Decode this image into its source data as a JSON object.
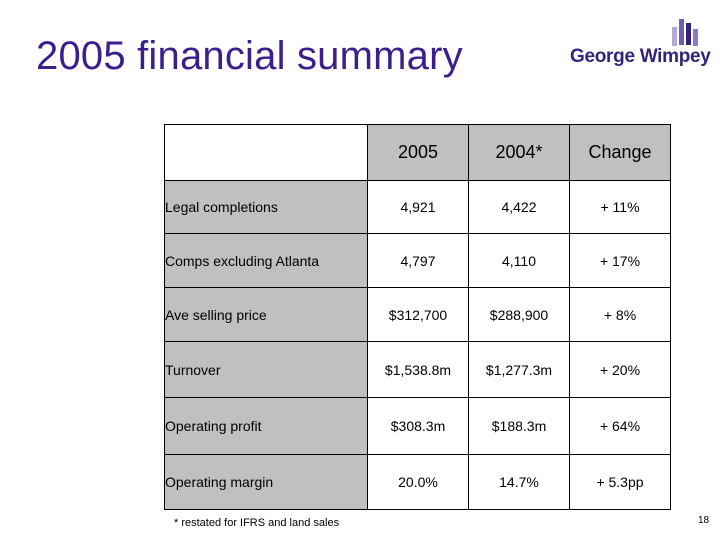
{
  "slide": {
    "title": "2005 financial summary",
    "footnote": "* restated for IFRS and land sales",
    "page_number": "18"
  },
  "logo": {
    "text": "George Wimpey",
    "colors": {
      "dark": "#35237a",
      "medium": "#6f5fb0",
      "light": "#b3a9d9"
    }
  },
  "table": {
    "columns": [
      "2005",
      "2004*",
      "Change"
    ],
    "rows": [
      {
        "label": "Legal completions",
        "values": [
          "4,921",
          "4,422",
          "+ 11%"
        ]
      },
      {
        "label": "Comps excluding Atlanta",
        "values": [
          "4,797",
          "4,110",
          "+ 17%"
        ]
      },
      {
        "label": "Ave selling price",
        "values": [
          "$312,700",
          "$288,900",
          "+ 8%"
        ]
      },
      {
        "label": "Turnover",
        "values": [
          "$1,538.8m",
          "$1,277.3m",
          "+ 20%"
        ]
      },
      {
        "label": "Operating profit",
        "values": [
          "$308.3m",
          "$188.3m",
          "+ 64%"
        ]
      },
      {
        "label": "Operating margin",
        "values": [
          "20.0%",
          "14.7%",
          "+ 5.3pp"
        ]
      }
    ]
  },
  "colors": {
    "title": "#3c1e8c",
    "label_fill": "#c0c0c0"
  }
}
